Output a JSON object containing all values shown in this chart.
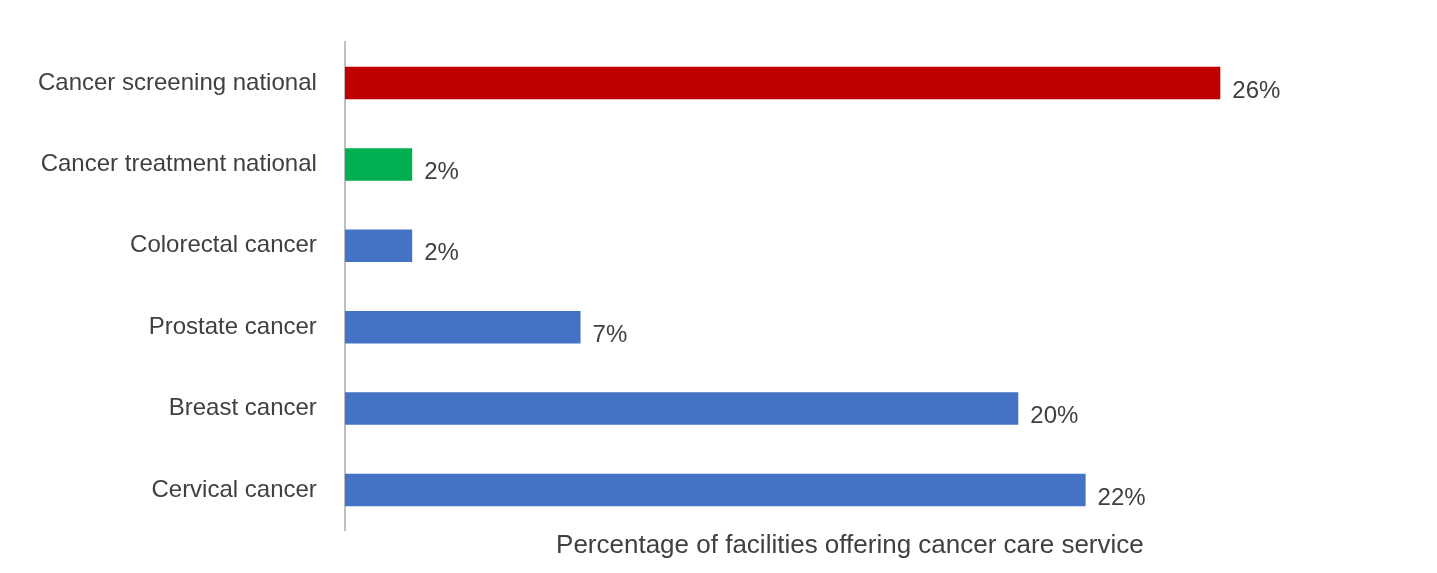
{
  "chart_data": {
    "type": "bar",
    "orientation": "horizontal",
    "xlabel": "Percentage of facilities offering cancer care service",
    "categories": [
      "Cancer screening national",
      "Cancer treatment national",
      "Colorectal cancer",
      "Prostate cancer",
      "Breast cancer",
      "Cervical cancer"
    ],
    "values": [
      26,
      2,
      2,
      7,
      20,
      22
    ],
    "colors": [
      "#c00000",
      "#00b050",
      "#4472c4",
      "#4472c4",
      "#4472c4",
      "#4472c4"
    ],
    "value_labels": [
      "26%",
      "2%",
      "2%",
      "7%",
      "20%",
      "22%"
    ],
    "grid": false,
    "legend": false,
    "tick_labels": "y"
  }
}
